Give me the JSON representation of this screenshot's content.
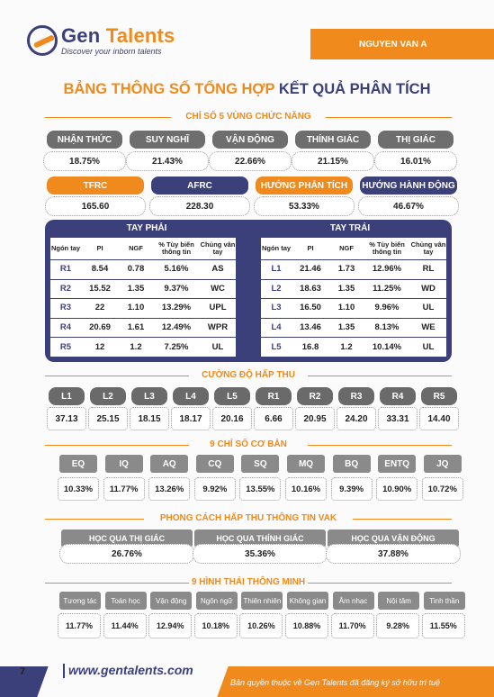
{
  "header": {
    "logo_name_a": "Gen ",
    "logo_name_b": "Talents",
    "logo_tagline": "Discover your inborn talents",
    "person_name": "NGUYEN VAN A"
  },
  "title": {
    "part1": "BẢNG THÔNG SỐ TỔNG HỢP ",
    "part2": "KẾT QUẢ PHÂN TÍCH"
  },
  "functional": {
    "title": "CHỈ SỐ 5 VÙNG CHỨC NĂNG",
    "labels": [
      "NHẬN THỨC",
      "SUY NGHĨ",
      "VẬN ĐỘNG",
      "THÍNH GIÁC",
      "THỊ GIÁC"
    ],
    "values": [
      "18.75%",
      "21.43%",
      "22.66%",
      "21.15%",
      "16.01%"
    ]
  },
  "tfrc": {
    "labels": [
      "TFRC",
      "AFRC",
      "HƯỚNG PHẢN TÍCH",
      "HƯỚNG HÀNH ĐỘNG"
    ],
    "values": [
      "165.60",
      "228.30",
      "53.33%",
      "46.67%"
    ]
  },
  "fingers": {
    "right_title": "TAY PHẢI",
    "left_title": "TAY TRÁI",
    "headers": [
      "Ngón tay",
      "PI",
      "NGF",
      "% Tùy biến thông tin",
      "Chủng vân tay"
    ],
    "right": [
      [
        "R1",
        "8.54",
        "0.78",
        "5.16%",
        "AS"
      ],
      [
        "R2",
        "15.52",
        "1.35",
        "9.37%",
        "WC"
      ],
      [
        "R3",
        "22",
        "1.10",
        "13.29%",
        "UPL"
      ],
      [
        "R4",
        "20.69",
        "1.61",
        "12.49%",
        "WPR"
      ],
      [
        "R5",
        "12",
        "1.2",
        "7.25%",
        "UL"
      ]
    ],
    "left": [
      [
        "L1",
        "21.46",
        "1.73",
        "12.96%",
        "RL"
      ],
      [
        "L2",
        "18.63",
        "1.35",
        "11.25%",
        "WD"
      ],
      [
        "L3",
        "16.50",
        "1.10",
        "9.96%",
        "UL"
      ],
      [
        "L4",
        "13.46",
        "1.35",
        "8.13%",
        "WE"
      ],
      [
        "L5",
        "16.8",
        "1.2",
        "10.14%",
        "UL"
      ]
    ]
  },
  "absorb": {
    "title": "CƯỜNG ĐỘ HẤP THU",
    "labels": [
      "L1",
      "L2",
      "L3",
      "L4",
      "L5",
      "R1",
      "R2",
      "R3",
      "R4",
      "R5"
    ],
    "values": [
      "37.13",
      "25.15",
      "18.15",
      "18.17",
      "20.16",
      "6.66",
      "20.95",
      "24.20",
      "33.31",
      "14.40"
    ]
  },
  "basic": {
    "title": "9 CHỈ SỐ CƠ BẢN",
    "labels": [
      "EQ",
      "IQ",
      "AQ",
      "CQ",
      "SQ",
      "MQ",
      "BQ",
      "ENTQ",
      "JQ"
    ],
    "values": [
      "10.33%",
      "11.77%",
      "13.26%",
      "9.92%",
      "13.55%",
      "10.16%",
      "9.39%",
      "10.90%",
      "10.72%"
    ]
  },
  "vak": {
    "title": "PHONG CÁCH HẤP THU THÔNG TIN VAK",
    "labels": [
      "HỌC QUA THỊ GIÁC",
      "HỌC QUA THÍNH GIÁC",
      "HỌC QUA VẬN ĐỘNG"
    ],
    "values": [
      "26.76%",
      "35.36%",
      "37.88%"
    ]
  },
  "intel": {
    "title": "9 HÌNH THÁI THÔNG MINH",
    "labels": [
      "Tương tác",
      "Toán học",
      "Vận động",
      "Ngôn ngữ",
      "Thiên nhiên",
      "Không gian",
      "Âm nhạc",
      "Nội tâm",
      "Tinh thần"
    ],
    "values": [
      "11.77%",
      "11.44%",
      "12.94%",
      "10.18%",
      "10.26%",
      "10.88%",
      "11.70%",
      "9.28%",
      "11.55%"
    ]
  },
  "footer": {
    "page": "7",
    "site": "www.gentalents.com",
    "copyright": "Bản quyền thuộc về Gen Talents đã đăng ký sở hữu trí tuệ"
  }
}
